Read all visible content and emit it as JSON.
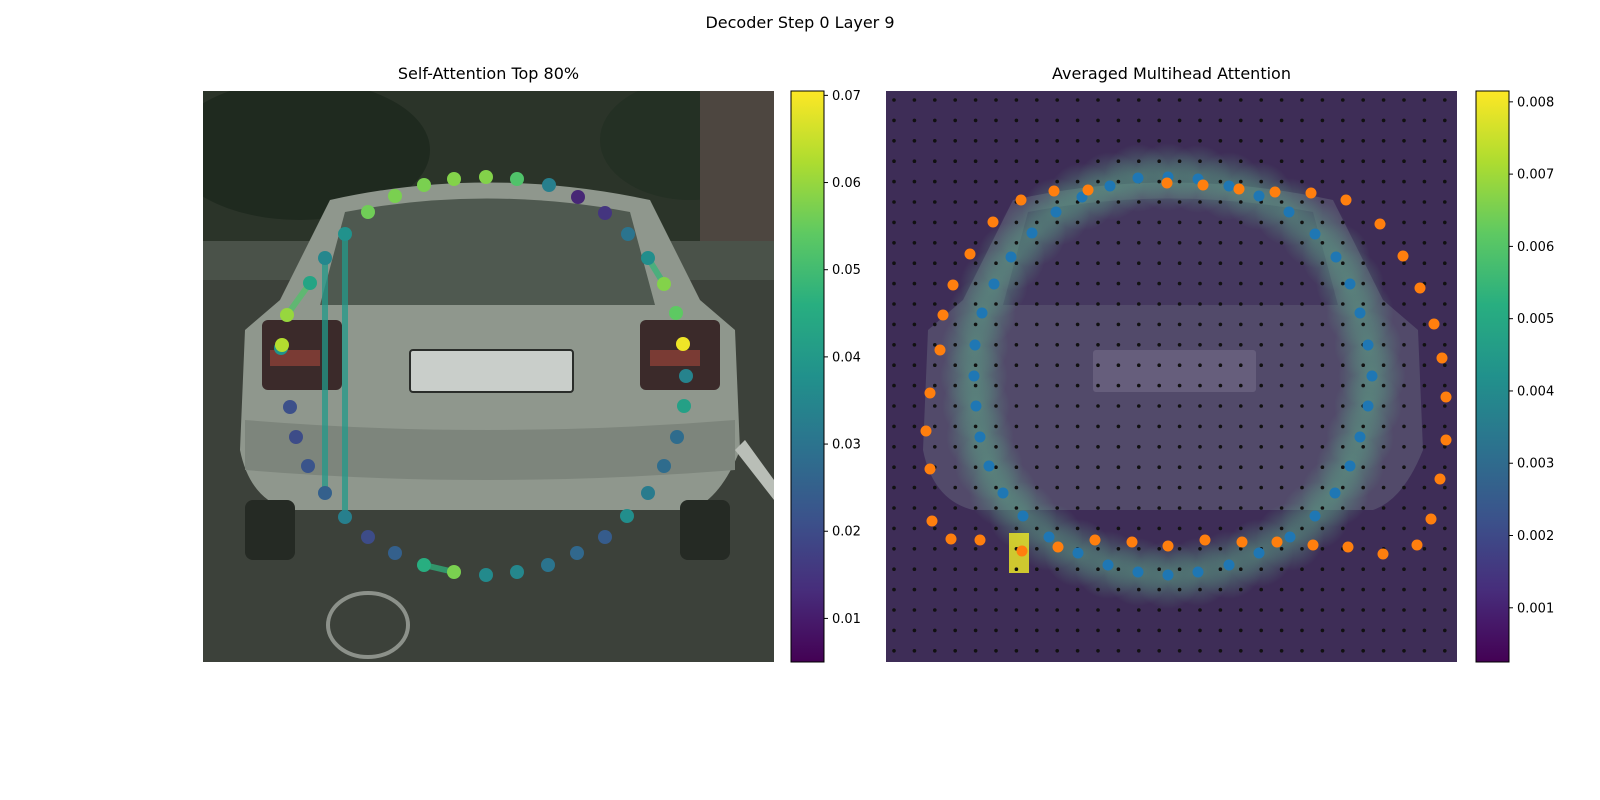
{
  "figure": {
    "suptitle": "Decoder Step 0 Layer 9"
  },
  "chart_data": [
    {
      "type": "scatter",
      "title": "Self-Attention Top 80%",
      "background": "grayscale photo: rear view of a silver hatchback (plate ST QF 325) in a parking lot",
      "colormap": "viridis",
      "colorbar": {
        "ticks": [
          0.01,
          0.02,
          0.03,
          0.04,
          0.05,
          0.06,
          0.07
        ],
        "range": [
          0.005,
          0.0705
        ]
      },
      "axes_visible": false,
      "points": [
        {
          "x": 281,
          "y": 348,
          "v": 0.038
        },
        {
          "x": 287,
          "y": 315,
          "v": 0.06
        },
        {
          "x": 282,
          "y": 345,
          "v": 0.063
        },
        {
          "x": 310,
          "y": 283,
          "v": 0.043
        },
        {
          "x": 325,
          "y": 258,
          "v": 0.035
        },
        {
          "x": 345,
          "y": 234,
          "v": 0.038
        },
        {
          "x": 368,
          "y": 212,
          "v": 0.056
        },
        {
          "x": 395,
          "y": 196,
          "v": 0.057
        },
        {
          "x": 424,
          "y": 185,
          "v": 0.057
        },
        {
          "x": 454,
          "y": 179,
          "v": 0.058
        },
        {
          "x": 486,
          "y": 177,
          "v": 0.058
        },
        {
          "x": 517,
          "y": 179,
          "v": 0.052
        },
        {
          "x": 549,
          "y": 185,
          "v": 0.033
        },
        {
          "x": 578,
          "y": 197,
          "v": 0.012
        },
        {
          "x": 605,
          "y": 213,
          "v": 0.015
        },
        {
          "x": 628,
          "y": 234,
          "v": 0.03
        },
        {
          "x": 648,
          "y": 258,
          "v": 0.037
        },
        {
          "x": 664,
          "y": 284,
          "v": 0.058
        },
        {
          "x": 676,
          "y": 313,
          "v": 0.054
        },
        {
          "x": 683,
          "y": 344,
          "v": 0.069
        },
        {
          "x": 686,
          "y": 376,
          "v": 0.034
        },
        {
          "x": 684,
          "y": 406,
          "v": 0.042
        },
        {
          "x": 677,
          "y": 437,
          "v": 0.028
        },
        {
          "x": 664,
          "y": 466,
          "v": 0.028
        },
        {
          "x": 648,
          "y": 493,
          "v": 0.032
        },
        {
          "x": 627,
          "y": 516,
          "v": 0.037
        },
        {
          "x": 605,
          "y": 537,
          "v": 0.024
        },
        {
          "x": 577,
          "y": 553,
          "v": 0.027
        },
        {
          "x": 548,
          "y": 565,
          "v": 0.03
        },
        {
          "x": 517,
          "y": 572,
          "v": 0.035
        },
        {
          "x": 486,
          "y": 575,
          "v": 0.036
        },
        {
          "x": 454,
          "y": 572,
          "v": 0.057
        },
        {
          "x": 424,
          "y": 565,
          "v": 0.046
        },
        {
          "x": 395,
          "y": 553,
          "v": 0.025
        },
        {
          "x": 368,
          "y": 537,
          "v": 0.02
        },
        {
          "x": 345,
          "y": 517,
          "v": 0.033
        },
        {
          "x": 325,
          "y": 493,
          "v": 0.025
        },
        {
          "x": 308,
          "y": 466,
          "v": 0.022
        },
        {
          "x": 296,
          "y": 437,
          "v": 0.02
        },
        {
          "x": 290,
          "y": 407,
          "v": 0.021
        }
      ],
      "links": [
        {
          "from": [
            345,
            234
          ],
          "to": [
            345,
            517
          ],
          "v": 0.04
        },
        {
          "from": [
            325,
            258
          ],
          "to": [
            325,
            493
          ],
          "v": 0.04
        },
        {
          "from": [
            310,
            283
          ],
          "to": [
            287,
            315
          ],
          "v": 0.052
        },
        {
          "from": [
            424,
            565
          ],
          "to": [
            454,
            572
          ],
          "v": 0.047
        },
        {
          "from": [
            648,
            258
          ],
          "to": [
            664,
            284
          ],
          "v": 0.048
        }
      ]
    },
    {
      "type": "heatmap",
      "title": "Averaged Multihead Attention",
      "background": "same car photo overlaid with an attention heatmap and a regular grid of black reference points",
      "colormap": "viridis",
      "colorbar": {
        "ticks": [
          0.001,
          0.002,
          0.003,
          0.004,
          0.005,
          0.006,
          0.007,
          0.008
        ],
        "range": [
          0.00025,
          0.00815
        ]
      },
      "axes_visible": false,
      "series": [
        {
          "color": "#1f77b4",
          "points": [
            [
              1138,
              178
            ],
            [
              1168,
              177
            ],
            [
              1198,
              179
            ],
            [
              1229,
              186
            ],
            [
              1259,
              196
            ],
            [
              1289,
              212
            ],
            [
              1315,
              234
            ],
            [
              1336,
              257
            ],
            [
              1350,
              284
            ],
            [
              1360,
              313
            ],
            [
              1368,
              345
            ],
            [
              1372,
              376
            ],
            [
              1368,
              406
            ],
            [
              1360,
              437
            ],
            [
              1350,
              466
            ],
            [
              1335,
              493
            ],
            [
              1315,
              516
            ],
            [
              1290,
              537
            ],
            [
              1259,
              553
            ],
            [
              1229,
              565
            ],
            [
              1198,
              572
            ],
            [
              1168,
              575
            ],
            [
              1138,
              572
            ],
            [
              1108,
              565
            ],
            [
              1078,
              553
            ],
            [
              1049,
              537
            ],
            [
              1023,
              516
            ],
            [
              1003,
              493
            ],
            [
              989,
              466
            ],
            [
              980,
              437
            ],
            [
              976,
              406
            ],
            [
              974,
              376
            ],
            [
              975,
              345
            ],
            [
              982,
              313
            ],
            [
              994,
              284
            ],
            [
              1011,
              257
            ],
            [
              1032,
              233
            ],
            [
              1056,
              212
            ],
            [
              1082,
              197
            ],
            [
              1110,
              186
            ]
          ]
        },
        {
          "color": "#ff7f0e",
          "points": [
            [
              1167,
              183
            ],
            [
              1203,
              185
            ],
            [
              1239,
              189
            ],
            [
              1275,
              192
            ],
            [
              1311,
              193
            ],
            [
              1346,
              200
            ],
            [
              1380,
              224
            ],
            [
              1403,
              256
            ],
            [
              1420,
              288
            ],
            [
              1434,
              324
            ],
            [
              1442,
              358
            ],
            [
              1446,
              397
            ],
            [
              1446,
              440
            ],
            [
              1440,
              479
            ],
            [
              1431,
              519
            ],
            [
              1417,
              545
            ],
            [
              1383,
              554
            ],
            [
              1348,
              547
            ],
            [
              1313,
              545
            ],
            [
              1277,
              542
            ],
            [
              1242,
              542
            ],
            [
              1205,
              540
            ],
            [
              1168,
              546
            ],
            [
              1132,
              542
            ],
            [
              1095,
              540
            ],
            [
              1058,
              547
            ],
            [
              1022,
              551
            ],
            [
              980,
              540
            ],
            [
              951,
              539
            ],
            [
              932,
              521
            ],
            [
              930,
              469
            ],
            [
              926,
              431
            ],
            [
              930,
              393
            ],
            [
              940,
              350
            ],
            [
              943,
              315
            ],
            [
              953,
              285
            ],
            [
              970,
              254
            ],
            [
              993,
              222
            ],
            [
              1021,
              200
            ],
            [
              1054,
              191
            ],
            [
              1088,
              190
            ]
          ]
        }
      ],
      "hotspot": {
        "x": 1019,
        "y": 553,
        "v": 0.0079
      }
    }
  ]
}
